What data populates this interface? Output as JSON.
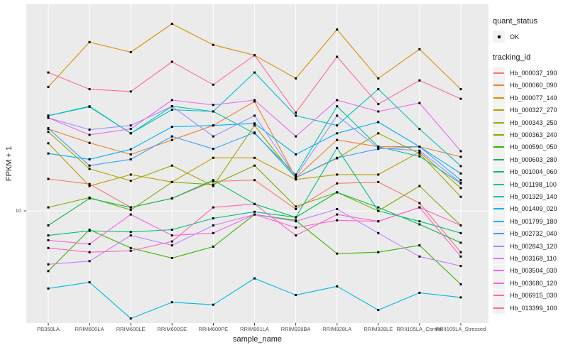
{
  "chart": {
    "y_tick_label": "10",
    "panel_bg": "#EBEBEB",
    "grid_color": "#FFFFFF",
    "axis_text_color": "#4D4D4D",
    "tick_color": "#333333",
    "point_color": "#000000"
  },
  "legend": {
    "quant_title": "quant_status",
    "quant_items": [
      {
        "label": "OK",
        "symbol": "black-point"
      }
    ],
    "tracking_title": "tracking_id"
  },
  "chart_data": {
    "type": "line",
    "title": "",
    "xlabel": "sample_name",
    "ylabel": "FPKM + 1",
    "y_scale": "log10",
    "y_ticks": [
      10
    ],
    "ylim": [
      2.8,
      95
    ],
    "grid": true,
    "legend_position": "right",
    "point_shape": "small-black-square",
    "categories": [
      "PB350LA",
      "RRIM600LA",
      "RRIM600LE",
      "RRIM600SE",
      "RRIM600PE",
      "RRIM901LA",
      "RRIM928BA",
      "RRIM928LA",
      "RRIM928LE",
      "RRII105LA_Control",
      "RRII105LA_Stressed"
    ],
    "series": [
      {
        "name": "Hb_000037_190",
        "color": "#F8766D",
        "values": [
          14.3,
          13.5,
          10.4,
          11.5,
          13.9,
          14.1,
          10.2,
          13.6,
          13.8,
          10.9,
          6.3
        ]
      },
      {
        "name": "Hb_000060_090",
        "color": "#EA8331",
        "values": [
          25.0,
          21.4,
          18.8,
          22.1,
          26.0,
          34.0,
          14.5,
          22.1,
          20.5,
          20.5,
          18.3
        ]
      },
      {
        "name": "Hb_000077_140",
        "color": "#D89000",
        "values": [
          40.0,
          66.0,
          59.0,
          81.0,
          64.0,
          57.0,
          44.0,
          76.0,
          44.0,
          61.0,
          39.0
        ]
      },
      {
        "name": "Hb_000327_270",
        "color": "#C09B00",
        "values": [
          21.3,
          13.2,
          15.0,
          13.8,
          18.1,
          18.1,
          14.2,
          15.0,
          15.0,
          19.3,
          12.9
        ]
      },
      {
        "name": "Hb_000343_250",
        "color": "#A3A500",
        "values": [
          24.2,
          16.0,
          14.0,
          16.6,
          13.2,
          26.0,
          14.5,
          18.0,
          23.8,
          19.0,
          11.7
        ]
      },
      {
        "name": "Hb_000363_240",
        "color": "#7CAE00",
        "values": [
          10.4,
          11.6,
          10.1,
          13.8,
          13.4,
          16.6,
          10.5,
          12.3,
          10.0,
          13.2,
          8.5
        ]
      },
      {
        "name": "Hb_000590_050",
        "color": "#39B600",
        "values": [
          5.1,
          8.1,
          6.6,
          5.9,
          6.7,
          9.6,
          9.0,
          6.2,
          6.3,
          6.8,
          4.4
        ]
      },
      {
        "name": "Hb_000603_280",
        "color": "#00BB4E",
        "values": [
          8.5,
          11.5,
          10.4,
          11.5,
          14.1,
          10.8,
          9.3,
          12.3,
          10.4,
          8.6,
          7.0
        ]
      },
      {
        "name": "Hb_001004_060",
        "color": "#00BF7D",
        "values": [
          7.6,
          8.0,
          7.9,
          8.1,
          9.2,
          9.9,
          9.3,
          20.2,
          10.0,
          8.9,
          7.8
        ]
      },
      {
        "name": "Hb_001198_100",
        "color": "#00C1A3",
        "values": [
          29.0,
          32.0,
          23.8,
          32.2,
          30.4,
          23.8,
          15.0,
          32.2,
          20.5,
          18.4,
          13.6
        ]
      },
      {
        "name": "Hb_001329_140",
        "color": "#00BFC4",
        "values": [
          29.0,
          32.2,
          23.8,
          31.0,
          30.4,
          47.0,
          29.0,
          26.0,
          39.0,
          25.0,
          16.5
        ]
      },
      {
        "name": "Hb_001409_020",
        "color": "#00BAE0",
        "values": [
          4.2,
          4.5,
          3.0,
          3.6,
          3.5,
          4.7,
          3.9,
          4.3,
          3.3,
          4.0,
          3.8
        ]
      },
      {
        "name": "Hb_001799_180",
        "color": "#00B0F6",
        "values": [
          19.0,
          17.8,
          19.9,
          25.6,
          26.0,
          26.6,
          18.8,
          23.8,
          27.0,
          20.5,
          15.2
        ]
      },
      {
        "name": "Hb_002732_040",
        "color": "#35A2FF",
        "values": [
          25.2,
          16.6,
          17.8,
          23.0,
          20.0,
          24.0,
          14.5,
          18.1,
          20.0,
          20.5,
          14.1
        ]
      },
      {
        "name": "Hb_002843_120",
        "color": "#9590FF",
        "values": [
          28.3,
          24.8,
          26.0,
          32.2,
          23.0,
          29.0,
          14.7,
          29.0,
          20.2,
          19.6,
          13.7
        ]
      },
      {
        "name": "Hb_003168_110",
        "color": "#C77CFF",
        "values": [
          5.5,
          5.7,
          7.6,
          6.8,
          8.5,
          9.6,
          8.9,
          10.2,
          7.8,
          6.0,
          5.4
        ]
      },
      {
        "name": "Hb_003504_030",
        "color": "#E76BF3",
        "values": [
          28.3,
          23.4,
          25.0,
          34.5,
          32.7,
          34.5,
          23.0,
          34.5,
          30.4,
          33.4,
          19.5
        ]
      },
      {
        "name": "Hb_003680_120",
        "color": "#FA62DB",
        "values": [
          7.2,
          6.9,
          9.6,
          7.6,
          7.8,
          9.6,
          8.3,
          9.0,
          8.9,
          10.4,
          6.0
        ]
      },
      {
        "name": "Hb_006915_030",
        "color": "#FF62BC",
        "values": [
          6.6,
          6.3,
          6.4,
          7.1,
          10.4,
          10.8,
          7.6,
          9.6,
          8.9,
          10.4,
          8.5
        ]
      },
      {
        "name": "Hb_013399_100",
        "color": "#FF6A98",
        "values": [
          47.0,
          39.0,
          38.0,
          53.0,
          41.0,
          57.0,
          30.0,
          56.0,
          33.0,
          43.0,
          35.0
        ]
      }
    ]
  }
}
